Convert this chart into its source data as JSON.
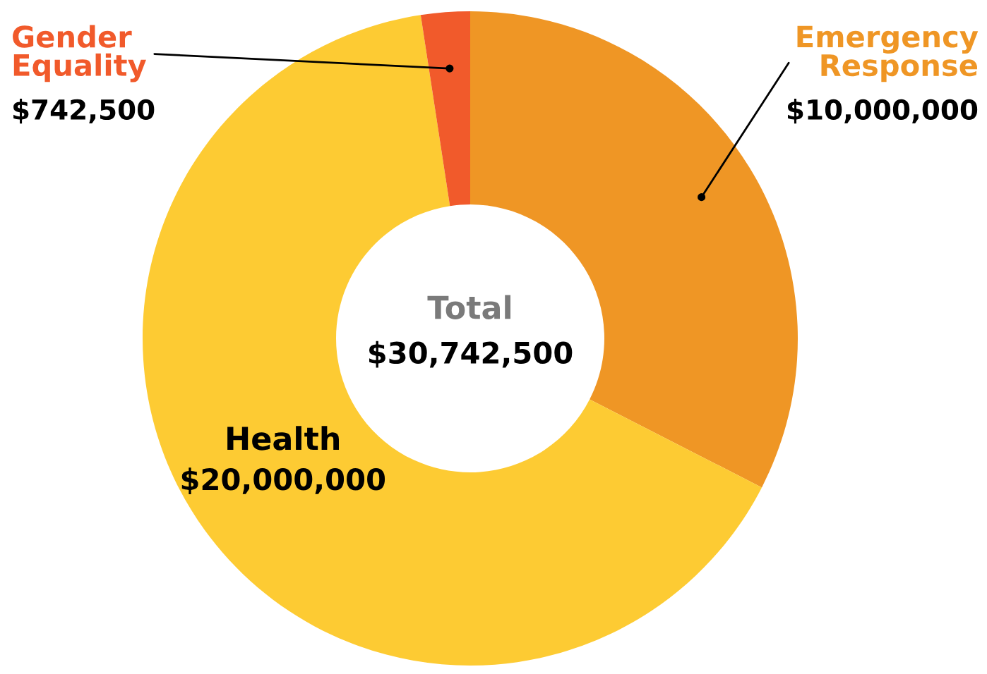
{
  "chart_data": {
    "type": "donut",
    "categories": [
      "Emergency Response",
      "Health",
      "Gender Equality"
    ],
    "values": [
      10000000,
      20000000,
      742500
    ],
    "colors": [
      "#ef9625",
      "#fdcb33",
      "#f15a2b"
    ],
    "value_labels": [
      "$10,000,000",
      "$20,000,000",
      "$742,500"
    ],
    "annotations": [
      "Total",
      "$30,742,500"
    ]
  }
}
